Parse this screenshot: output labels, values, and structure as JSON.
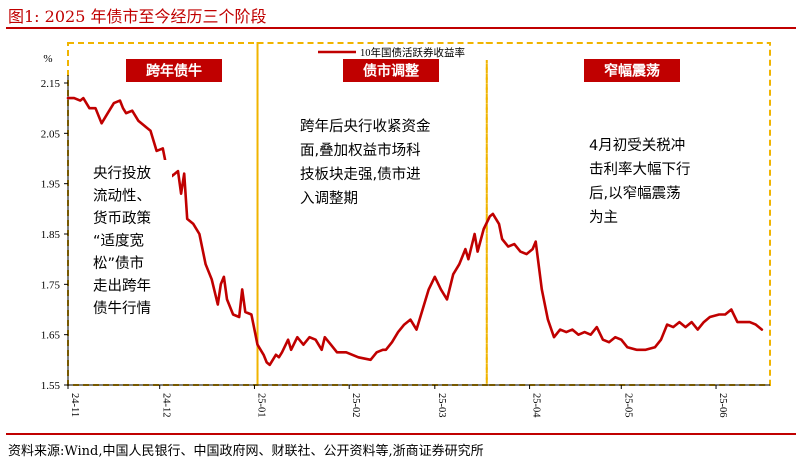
{
  "figure": {
    "title": "图1:  2025 年债市至今经历三个阶段",
    "source": "资料来源:Wind,中国人民银行、中国政府网、财联社、公开资料等,浙商证券研究所"
  },
  "chart_data": {
    "type": "line",
    "ylabel": "%",
    "ylim": [
      1.55,
      2.15
    ],
    "yticks": [
      "2.15",
      "2.05",
      "1.95",
      "1.85",
      "1.75",
      "1.65",
      "1.55"
    ],
    "xticks": [
      "24-11",
      "24-12",
      "25-01",
      "25-02",
      "25-03",
      "25-04",
      "25-05",
      "25-06"
    ],
    "grid": false,
    "legend_position": "top-center",
    "colors": {
      "line": "#c00000",
      "phase_label_bg": "#c00000",
      "phase_border": "#f0b400"
    },
    "series": [
      {
        "name": "10年国债活跃券收益率",
        "points": [
          [
            "2024-11-01",
            2.12
          ],
          [
            "2024-11-03",
            2.12
          ],
          [
            "2024-11-05",
            2.115
          ],
          [
            "2024-11-06",
            2.12
          ],
          [
            "2024-11-08",
            2.1
          ],
          [
            "2024-11-10",
            2.1
          ],
          [
            "2024-11-12",
            2.07
          ],
          [
            "2024-11-14",
            2.09
          ],
          [
            "2024-11-16",
            2.11
          ],
          [
            "2024-11-18",
            2.115
          ],
          [
            "2024-11-19",
            2.1
          ],
          [
            "2024-11-20",
            2.09
          ],
          [
            "2024-11-22",
            2.095
          ],
          [
            "2024-11-24",
            2.075
          ],
          [
            "2024-11-26",
            2.065
          ],
          [
            "2024-11-28",
            2.055
          ],
          [
            "2024-11-30",
            2.015
          ],
          [
            "2024-12-02",
            2.02
          ],
          [
            "2024-12-03",
            1.99
          ],
          [
            "2024-12-05",
            1.965
          ],
          [
            "2024-12-07",
            1.975
          ],
          [
            "2024-12-08",
            1.93
          ],
          [
            "2024-12-09",
            1.97
          ],
          [
            "2024-12-10",
            1.88
          ],
          [
            "2024-12-12",
            1.87
          ],
          [
            "2024-12-14",
            1.85
          ],
          [
            "2024-12-16",
            1.79
          ],
          [
            "2024-12-18",
            1.76
          ],
          [
            "2024-12-20",
            1.71
          ],
          [
            "2024-12-21",
            1.75
          ],
          [
            "2024-12-22",
            1.765
          ],
          [
            "2024-12-23",
            1.72
          ],
          [
            "2024-12-25",
            1.69
          ],
          [
            "2024-12-27",
            1.685
          ],
          [
            "2024-12-28",
            1.74
          ],
          [
            "2024-12-29",
            1.695
          ],
          [
            "2024-12-31",
            1.69
          ],
          [
            "2025-01-02",
            1.63
          ],
          [
            "2025-01-04",
            1.61
          ],
          [
            "2025-01-05",
            1.595
          ],
          [
            "2025-01-06",
            1.59
          ],
          [
            "2025-01-08",
            1.61
          ],
          [
            "2025-01-09",
            1.605
          ],
          [
            "2025-01-10",
            1.615
          ],
          [
            "2025-01-12",
            1.64
          ],
          [
            "2025-01-13",
            1.62
          ],
          [
            "2025-01-15",
            1.645
          ],
          [
            "2025-01-17",
            1.63
          ],
          [
            "2025-01-19",
            1.645
          ],
          [
            "2025-01-21",
            1.64
          ],
          [
            "2025-01-23",
            1.62
          ],
          [
            "2025-01-24",
            1.645
          ],
          [
            "2025-01-26",
            1.63
          ],
          [
            "2025-01-28",
            1.615
          ],
          [
            "2025-01-31",
            1.615
          ],
          [
            "2025-02-04",
            1.605
          ],
          [
            "2025-02-08",
            1.6
          ],
          [
            "2025-02-10",
            1.615
          ],
          [
            "2025-02-12",
            1.62
          ],
          [
            "2025-02-13",
            1.62
          ],
          [
            "2025-02-15",
            1.635
          ],
          [
            "2025-02-17",
            1.655
          ],
          [
            "2025-02-19",
            1.67
          ],
          [
            "2025-02-21",
            1.68
          ],
          [
            "2025-02-23",
            1.66
          ],
          [
            "2025-02-25",
            1.7
          ],
          [
            "2025-02-27",
            1.74
          ],
          [
            "2025-03-01",
            1.765
          ],
          [
            "2025-03-03",
            1.74
          ],
          [
            "2025-03-05",
            1.72
          ],
          [
            "2025-03-07",
            1.77
          ],
          [
            "2025-03-09",
            1.79
          ],
          [
            "2025-03-11",
            1.82
          ],
          [
            "2025-03-12",
            1.8
          ],
          [
            "2025-03-14",
            1.85
          ],
          [
            "2025-03-15",
            1.815
          ],
          [
            "2025-03-17",
            1.86
          ],
          [
            "2025-03-19",
            1.885
          ],
          [
            "2025-03-20",
            1.89
          ],
          [
            "2025-03-22",
            1.87
          ],
          [
            "2025-03-23",
            1.84
          ],
          [
            "2025-03-25",
            1.825
          ],
          [
            "2025-03-27",
            1.83
          ],
          [
            "2025-03-29",
            1.815
          ],
          [
            "2025-03-31",
            1.81
          ],
          [
            "2025-04-02",
            1.82
          ],
          [
            "2025-04-03",
            1.835
          ],
          [
            "2025-04-05",
            1.74
          ],
          [
            "2025-04-07",
            1.68
          ],
          [
            "2025-04-09",
            1.645
          ],
          [
            "2025-04-11",
            1.66
          ],
          [
            "2025-04-13",
            1.655
          ],
          [
            "2025-04-15",
            1.66
          ],
          [
            "2025-04-17",
            1.65
          ],
          [
            "2025-04-19",
            1.655
          ],
          [
            "2025-04-21",
            1.65
          ],
          [
            "2025-04-23",
            1.665
          ],
          [
            "2025-04-25",
            1.64
          ],
          [
            "2025-04-27",
            1.635
          ],
          [
            "2025-04-29",
            1.645
          ],
          [
            "2025-05-01",
            1.64
          ],
          [
            "2025-05-03",
            1.625
          ],
          [
            "2025-05-06",
            1.62
          ],
          [
            "2025-05-09",
            1.62
          ],
          [
            "2025-05-12",
            1.625
          ],
          [
            "2025-05-14",
            1.64
          ],
          [
            "2025-05-16",
            1.67
          ],
          [
            "2025-05-18",
            1.665
          ],
          [
            "2025-05-20",
            1.675
          ],
          [
            "2025-05-22",
            1.665
          ],
          [
            "2025-05-24",
            1.675
          ],
          [
            "2025-05-26",
            1.66
          ],
          [
            "2025-05-28",
            1.675
          ],
          [
            "2025-05-30",
            1.685
          ],
          [
            "2025-06-02",
            1.69
          ],
          [
            "2025-06-04",
            1.69
          ],
          [
            "2025-06-06",
            1.7
          ],
          [
            "2025-06-08",
            1.675
          ],
          [
            "2025-06-10",
            1.675
          ],
          [
            "2025-06-12",
            1.675
          ],
          [
            "2025-06-14",
            1.67
          ],
          [
            "2025-06-16",
            1.66
          ]
        ]
      }
    ],
    "phases": [
      {
        "label": "跨年债牛",
        "start": "2024-11-01",
        "end": "2025-01-02"
      },
      {
        "label": "债市调整",
        "start": "2025-01-02",
        "end": "2025-03-18"
      },
      {
        "label": "窄幅震荡",
        "start": "2025-03-18",
        "end": "2025-06-18"
      }
    ],
    "annotations": [
      {
        "lines": [
          "央行投放",
          "流动性、",
          "货币政策",
          "“适度宽",
          "松”债市",
          "走出跨年",
          "债牛行情"
        ]
      },
      {
        "lines": [
          "跨年后央行收紧资金",
          "面,叠加权益市场科",
          "技板块走强,债市进",
          "入调整期"
        ]
      },
      {
        "lines": [
          "4月初受关税冲",
          "击利率大幅下行",
          "后,以窄幅震荡",
          "为主"
        ]
      }
    ]
  }
}
